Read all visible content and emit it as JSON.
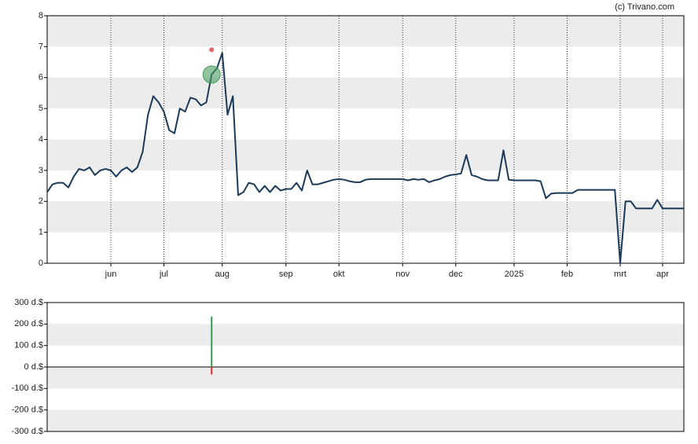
{
  "chart_data": [
    {
      "type": "line",
      "credit": "(c) Trivano.com",
      "categories": [
        null,
        null,
        null,
        null,
        null,
        null,
        null,
        null,
        null,
        null,
        null,
        null,
        "jun",
        null,
        null,
        null,
        null,
        null,
        null,
        null,
        null,
        null,
        "jul",
        null,
        null,
        null,
        null,
        null,
        null,
        null,
        null,
        null,
        null,
        "aug",
        null,
        null,
        null,
        null,
        null,
        null,
        null,
        null,
        null,
        null,
        null,
        "sep",
        null,
        null,
        null,
        null,
        null,
        null,
        null,
        null,
        null,
        "okt",
        null,
        null,
        null,
        null,
        null,
        null,
        null,
        null,
        null,
        null,
        null,
        "nov",
        null,
        null,
        null,
        null,
        null,
        null,
        null,
        null,
        null,
        "dec",
        null,
        null,
        null,
        null,
        null,
        null,
        null,
        null,
        null,
        null,
        "2025",
        null,
        null,
        null,
        null,
        null,
        null,
        null,
        null,
        null,
        "feb",
        null,
        null,
        null,
        null,
        null,
        null,
        null,
        null,
        null,
        "mrt",
        null,
        null,
        null,
        null,
        null,
        null,
        null,
        "apr",
        null,
        null,
        null,
        null
      ],
      "series": [
        {
          "type": "line",
          "color": "#1b3a57",
          "values": [
            2.3,
            2.55,
            2.6,
            2.6,
            2.45,
            2.8,
            3.05,
            3.0,
            3.1,
            2.85,
            3.0,
            3.05,
            3.0,
            2.8,
            3.0,
            3.1,
            2.95,
            3.1,
            3.6,
            4.8,
            5.4,
            5.2,
            4.9,
            4.3,
            4.2,
            5.0,
            4.9,
            5.35,
            5.3,
            5.1,
            5.2,
            6.1,
            6.3,
            6.8,
            4.8,
            5.4,
            2.2,
            2.3,
            2.6,
            2.55,
            2.3,
            2.5,
            2.3,
            2.5,
            2.35,
            2.4,
            2.4,
            2.6,
            2.35,
            3.0,
            2.55,
            2.55,
            2.6,
            2.65,
            2.7,
            2.72,
            2.7,
            2.65,
            2.62,
            2.62,
            2.7,
            2.72,
            2.72,
            2.72,
            2.72,
            2.72,
            2.72,
            2.72,
            2.68,
            2.72,
            2.7,
            2.72,
            2.62,
            2.68,
            2.72,
            2.8,
            2.85,
            2.87,
            2.9,
            3.5,
            2.85,
            2.8,
            2.72,
            2.68,
            2.68,
            2.68,
            3.65,
            2.7,
            2.68,
            2.68,
            2.68,
            2.68,
            2.68,
            2.65,
            2.1,
            2.25,
            2.27,
            2.27,
            2.27,
            2.27,
            2.37,
            2.37,
            2.37,
            2.37,
            2.37,
            2.37,
            2.37,
            2.37,
            0.0,
            2.0,
            2.0,
            1.77,
            1.77,
            1.77,
            1.77,
            2.05,
            1.77,
            1.77,
            1.77,
            1.77,
            1.77
          ]
        },
        {
          "type": "scatter",
          "color": "#4a9d5f",
          "values": [
            null,
            null,
            null,
            null,
            null,
            null,
            null,
            null,
            null,
            null,
            null,
            null,
            null,
            null,
            null,
            null,
            null,
            null,
            null,
            null,
            null,
            null,
            null,
            null,
            null,
            null,
            null,
            null,
            null,
            null,
            null,
            6.1,
            null,
            null,
            null,
            null,
            null,
            null,
            null,
            null,
            null,
            null,
            null,
            null,
            null,
            null,
            null,
            null,
            null,
            null,
            null,
            null,
            null,
            null,
            null,
            null,
            null,
            null,
            null,
            null,
            null,
            null,
            null,
            null,
            null,
            null,
            null,
            null,
            null,
            null,
            null,
            null,
            null,
            null,
            null,
            null,
            null,
            null,
            null,
            null,
            null,
            null,
            null,
            null,
            null,
            null,
            null,
            null,
            null,
            null,
            null,
            null,
            null,
            null,
            null,
            null,
            null,
            null,
            null,
            null,
            null,
            null,
            null,
            null,
            null,
            null,
            null,
            null,
            null,
            null,
            null,
            null,
            null,
            null,
            null,
            null,
            null,
            null,
            null,
            null,
            null
          ]
        },
        {
          "type": "scatter",
          "color": "#e8575a",
          "values": [
            null,
            null,
            null,
            null,
            null,
            null,
            null,
            null,
            null,
            null,
            null,
            null,
            null,
            null,
            null,
            null,
            null,
            null,
            null,
            null,
            null,
            null,
            null,
            null,
            null,
            null,
            null,
            null,
            null,
            null,
            null,
            6.9,
            null,
            null,
            null,
            null,
            null,
            null,
            null,
            null,
            null,
            null,
            null,
            null,
            null,
            null,
            null,
            null,
            null,
            null,
            null,
            null,
            null,
            null,
            null,
            null,
            null,
            null,
            null,
            null,
            null,
            null,
            null,
            null,
            null,
            null,
            null,
            null,
            null,
            null,
            null,
            null,
            null,
            null,
            null,
            null,
            null,
            null,
            null,
            null,
            null,
            null,
            null,
            null,
            null,
            null,
            null,
            null,
            null,
            null,
            null,
            null,
            null,
            null,
            null,
            null,
            null,
            null,
            null,
            null,
            null,
            null,
            null,
            null,
            null,
            null,
            null,
            null,
            null,
            null,
            null,
            null,
            null,
            null,
            null,
            null,
            null,
            null,
            null,
            null,
            null
          ]
        }
      ],
      "ylim": [
        0,
        8
      ],
      "yticks": [
        0,
        1,
        2,
        3,
        4,
        5,
        6,
        7,
        8
      ],
      "grid": true
    },
    {
      "type": "bar",
      "series": [
        {
          "color": "#2e9e4a",
          "values": [
            null,
            null,
            null,
            null,
            null,
            null,
            null,
            null,
            null,
            null,
            null,
            null,
            null,
            null,
            null,
            null,
            null,
            null,
            null,
            null,
            null,
            null,
            null,
            null,
            null,
            null,
            null,
            null,
            null,
            null,
            null,
            235,
            null,
            null,
            null,
            null,
            null,
            null,
            null,
            null,
            null,
            null,
            null,
            null,
            null,
            null,
            null,
            null,
            null,
            null,
            null,
            null,
            null,
            null,
            null,
            null,
            null,
            null,
            null,
            null,
            null,
            null,
            null,
            null,
            null,
            null,
            null,
            null,
            null,
            null,
            null,
            null,
            null,
            null,
            null,
            null,
            null,
            null,
            null,
            null,
            null,
            null,
            null,
            null,
            null,
            null,
            null,
            null,
            null,
            null,
            null,
            null,
            null,
            null,
            null,
            null,
            null,
            null,
            null,
            null,
            null,
            null,
            null,
            null,
            null,
            null,
            null,
            null,
            null,
            null,
            null,
            null,
            null,
            null,
            null,
            null,
            null,
            null,
            null,
            null,
            null
          ]
        },
        {
          "color": "#e0262b",
          "values": [
            null,
            null,
            null,
            null,
            null,
            null,
            null,
            null,
            null,
            null,
            null,
            null,
            null,
            null,
            null,
            null,
            null,
            null,
            null,
            null,
            null,
            null,
            null,
            null,
            null,
            null,
            null,
            null,
            null,
            null,
            null,
            -35,
            null,
            null,
            null,
            null,
            null,
            null,
            null,
            null,
            null,
            null,
            null,
            null,
            null,
            null,
            null,
            null,
            null,
            null,
            null,
            null,
            null,
            null,
            null,
            null,
            null,
            null,
            null,
            null,
            null,
            null,
            null,
            null,
            null,
            null,
            null,
            null,
            null,
            null,
            null,
            null,
            null,
            null,
            null,
            null,
            null,
            null,
            null,
            null,
            null,
            null,
            null,
            null,
            null,
            null,
            null,
            null,
            null,
            null,
            null,
            null,
            null,
            null,
            null,
            null,
            null,
            null,
            null,
            null,
            null,
            null,
            null,
            null,
            null,
            null,
            null,
            null,
            null,
            null,
            null,
            null,
            null,
            null,
            null,
            null,
            null,
            null,
            null,
            null,
            null
          ]
        }
      ],
      "ylim": [
        -300,
        300
      ],
      "yticks": [
        {
          "value": -300,
          "label": "-300 d.$"
        },
        {
          "value": -200,
          "label": "-200 d.$"
        },
        {
          "value": -100,
          "label": "-100 d.$"
        },
        {
          "value": 0,
          "label": "0 d.$"
        },
        {
          "value": 100,
          "label": "100 d.$"
        },
        {
          "value": 200,
          "label": "200 d.$"
        },
        {
          "value": 300,
          "label": "300 d.$"
        }
      ],
      "grid": true
    }
  ]
}
